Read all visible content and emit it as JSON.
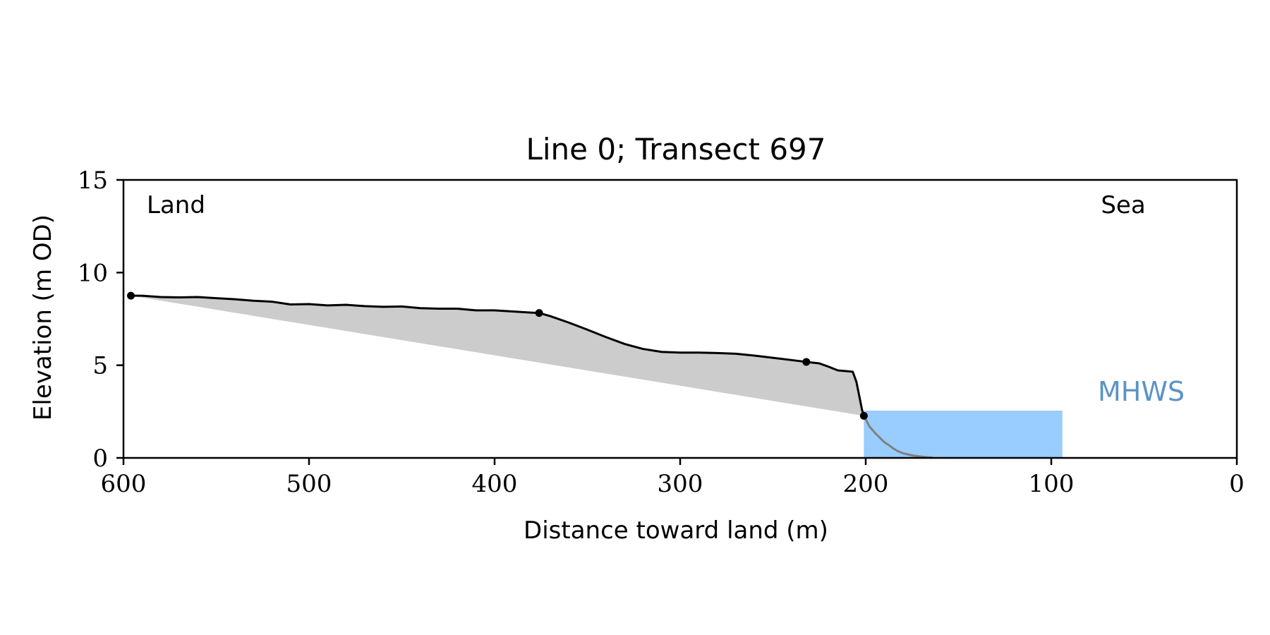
{
  "chart_data": {
    "type": "area",
    "title": "Line 0; Transect 697",
    "xlabel": "Distance toward land (m)",
    "ylabel": "Elevation (m OD)",
    "xlim": [
      600,
      0
    ],
    "ylim": [
      0,
      15
    ],
    "x_ticks": [
      600,
      500,
      400,
      300,
      200,
      100,
      0
    ],
    "y_ticks": [
      0,
      5,
      10,
      15
    ],
    "x_tick_labels": [
      "600",
      "500",
      "400",
      "300",
      "200",
      "100",
      "0"
    ],
    "y_tick_labels": [
      "0",
      "5",
      "10",
      "15"
    ],
    "grid": false,
    "annotations": {
      "land": "Land",
      "sea": "Sea",
      "mhws": "MHWS"
    },
    "mhws_level": 2.55,
    "mhws_x_range": [
      201,
      94
    ],
    "profile": {
      "x": [
        596,
        590,
        580,
        570,
        560,
        550,
        540,
        530,
        520,
        510,
        500,
        490,
        480,
        470,
        460,
        450,
        440,
        430,
        420,
        410,
        400,
        390,
        380,
        376,
        370,
        360,
        350,
        340,
        330,
        320,
        310,
        300,
        290,
        280,
        270,
        260,
        250,
        240,
        232,
        225,
        220,
        215,
        210,
        207,
        205,
        204,
        203,
        202,
        201
      ],
      "y": [
        8.75,
        8.75,
        8.68,
        8.66,
        8.68,
        8.62,
        8.56,
        8.48,
        8.43,
        8.28,
        8.3,
        8.23,
        8.26,
        8.19,
        8.15,
        8.17,
        8.08,
        8.05,
        8.05,
        7.96,
        7.96,
        7.9,
        7.84,
        7.82,
        7.65,
        7.3,
        6.92,
        6.52,
        6.15,
        5.88,
        5.72,
        5.68,
        5.68,
        5.66,
        5.62,
        5.52,
        5.4,
        5.28,
        5.18,
        5.1,
        4.92,
        4.72,
        4.68,
        4.65,
        4.1,
        3.6,
        3.1,
        2.6,
        2.27
      ]
    },
    "seaward_profile": {
      "x": [
        201,
        198,
        195,
        190,
        187,
        185,
        183,
        180,
        177,
        174,
        171,
        168,
        166,
        164
      ],
      "y": [
        2.27,
        1.7,
        1.35,
        0.85,
        0.65,
        0.5,
        0.38,
        0.25,
        0.18,
        0.12,
        0.08,
        0.05,
        0.03,
        0.02
      ]
    },
    "baseline": {
      "x": [
        596,
        201
      ],
      "y": [
        8.75,
        2.27
      ]
    },
    "markers": {
      "x": [
        596,
        376,
        232,
        201
      ],
      "y": [
        8.75,
        7.82,
        5.18,
        2.27
      ]
    },
    "colors": {
      "profile_line": "#000000",
      "seaward_line": "#808080",
      "fill": "#cccccc",
      "water": "#99ccff",
      "mhws_label": "#5b93c7"
    }
  }
}
